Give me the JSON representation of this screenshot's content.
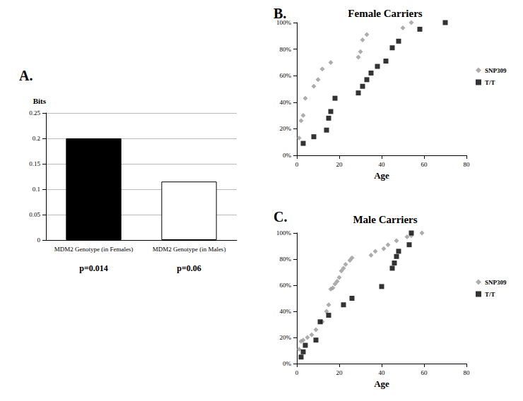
{
  "chart_data": [
    {
      "panel_label": "A.",
      "type": "bar",
      "y_label": "Bits",
      "categories": [
        "MDM2 Genotype (in Females)",
        "MDM2 Genotype (in Males)"
      ],
      "values": [
        0.2,
        0.115
      ],
      "colors": [
        "#000000",
        "#ffffff"
      ],
      "annotations": [
        "p=0.014",
        "p=0.06"
      ],
      "ylim": [
        0,
        0.25
      ],
      "yticks": [
        0,
        0.05,
        0.1,
        0.15,
        0.2,
        0.25
      ],
      "grid": true
    },
    {
      "panel_label": "B.",
      "type": "scatter",
      "title": "Female Carriers",
      "x_label": "Age",
      "xlim": [
        0,
        80
      ],
      "xticks": [
        0,
        20,
        40,
        60,
        80
      ],
      "ylim": [
        0,
        100
      ],
      "yticks": [
        {
          "value": 0,
          "label": "0%"
        },
        {
          "value": 20,
          "label": "20%"
        },
        {
          "value": 40,
          "label": "40%"
        },
        {
          "value": 60,
          "label": "60%"
        },
        {
          "value": 80,
          "label": "80%"
        },
        {
          "value": 100,
          "label": "100%"
        }
      ],
      "grid": false,
      "legend": "right",
      "series": [
        {
          "name": "SNP309",
          "color": "#999999",
          "marker": "diamond",
          "x": [
            1,
            2,
            3,
            4,
            8,
            10,
            12,
            16,
            29,
            30,
            31,
            33,
            50,
            54
          ],
          "values": [
            13,
            26,
            30,
            43,
            52,
            57,
            65,
            70,
            74,
            78,
            87,
            91,
            96,
            100
          ]
        },
        {
          "name": "T/T",
          "color": "#000000",
          "marker": "square",
          "x": [
            3,
            8,
            14,
            15,
            16,
            18,
            29,
            31,
            33,
            35,
            38,
            42,
            45,
            48,
            58,
            70
          ],
          "values": [
            9,
            14,
            19,
            28,
            33,
            43,
            47,
            52,
            57,
            62,
            67,
            71,
            81,
            86,
            95,
            100
          ]
        }
      ]
    },
    {
      "panel_label": "C.",
      "type": "scatter",
      "title": "Male Carriers",
      "x_label": "Age",
      "xlim": [
        0,
        80
      ],
      "xticks": [
        0,
        20,
        40,
        60,
        80
      ],
      "ylim": [
        0,
        100
      ],
      "yticks": [
        {
          "value": 0,
          "label": "0%"
        },
        {
          "value": 20,
          "label": "20%"
        },
        {
          "value": 40,
          "label": "40%"
        },
        {
          "value": 60,
          "label": "60%"
        },
        {
          "value": 80,
          "label": "80%"
        },
        {
          "value": 100,
          "label": "100%"
        }
      ],
      "grid": false,
      "legend": "right",
      "series": [
        {
          "name": "SNP309",
          "color": "#999999",
          "marker": "diamond",
          "x": [
            1,
            2,
            3,
            5,
            7,
            9,
            12,
            14,
            15,
            16,
            17,
            18,
            19,
            20,
            21,
            22,
            23,
            25,
            26,
            35,
            37,
            41,
            43,
            47,
            52,
            54,
            59
          ],
          "values": [
            11,
            17,
            18,
            20,
            22,
            26,
            32,
            40,
            45,
            57,
            58,
            61,
            63,
            66,
            71,
            73,
            76,
            79,
            81,
            83,
            86,
            88,
            91,
            94,
            97,
            98,
            100
          ]
        },
        {
          "name": "T/T",
          "color": "#000000",
          "marker": "square",
          "x": [
            2,
            3,
            4,
            9,
            11,
            15,
            22,
            26,
            40,
            45,
            46,
            47,
            48,
            53,
            54
          ],
          "values": [
            5,
            9,
            14,
            18,
            32,
            37,
            45,
            50,
            59,
            73,
            77,
            82,
            86,
            91,
            100
          ]
        }
      ]
    }
  ]
}
